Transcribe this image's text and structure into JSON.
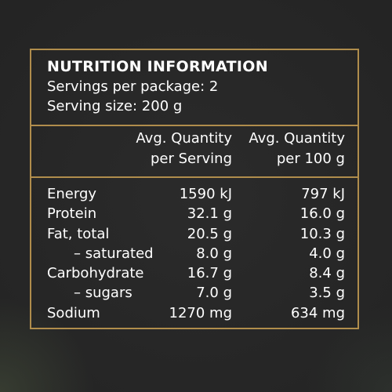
{
  "label": {
    "title": "NUTRITION INFORMATION",
    "servings_per_package": "Servings per package: 2",
    "serving_size": "Serving size: 200 g",
    "column_headers": {
      "per_serving_line1": "Avg. Quantity",
      "per_serving_line2": "per Serving",
      "per_100g_line1": "Avg. Quantity",
      "per_100g_line2": "per 100 g"
    },
    "rows": [
      {
        "name": "Energy",
        "per_serving": "1590 kJ",
        "per_100g": "797 kJ"
      },
      {
        "name": "Protein",
        "per_serving": "32.1 g",
        "per_100g": "16.0 g"
      },
      {
        "name": "Fat, total",
        "per_serving": "20.5 g",
        "per_100g": "10.3 g"
      },
      {
        "name": "– saturated",
        "per_serving": "8.0 g",
        "per_100g": "4.0 g"
      },
      {
        "name": "Carbohydrate",
        "per_serving": "16.7 g",
        "per_100g": "8.4 g"
      },
      {
        "name": "– sugars",
        "per_serving": "7.0 g",
        "per_100g": "3.5 g"
      },
      {
        "name": "Sodium",
        "per_serving": "1270 mg",
        "per_100g": "634 mg"
      }
    ]
  },
  "colors": {
    "background": "#262626",
    "border": "#b08d4c",
    "text": "#ffffff"
  }
}
